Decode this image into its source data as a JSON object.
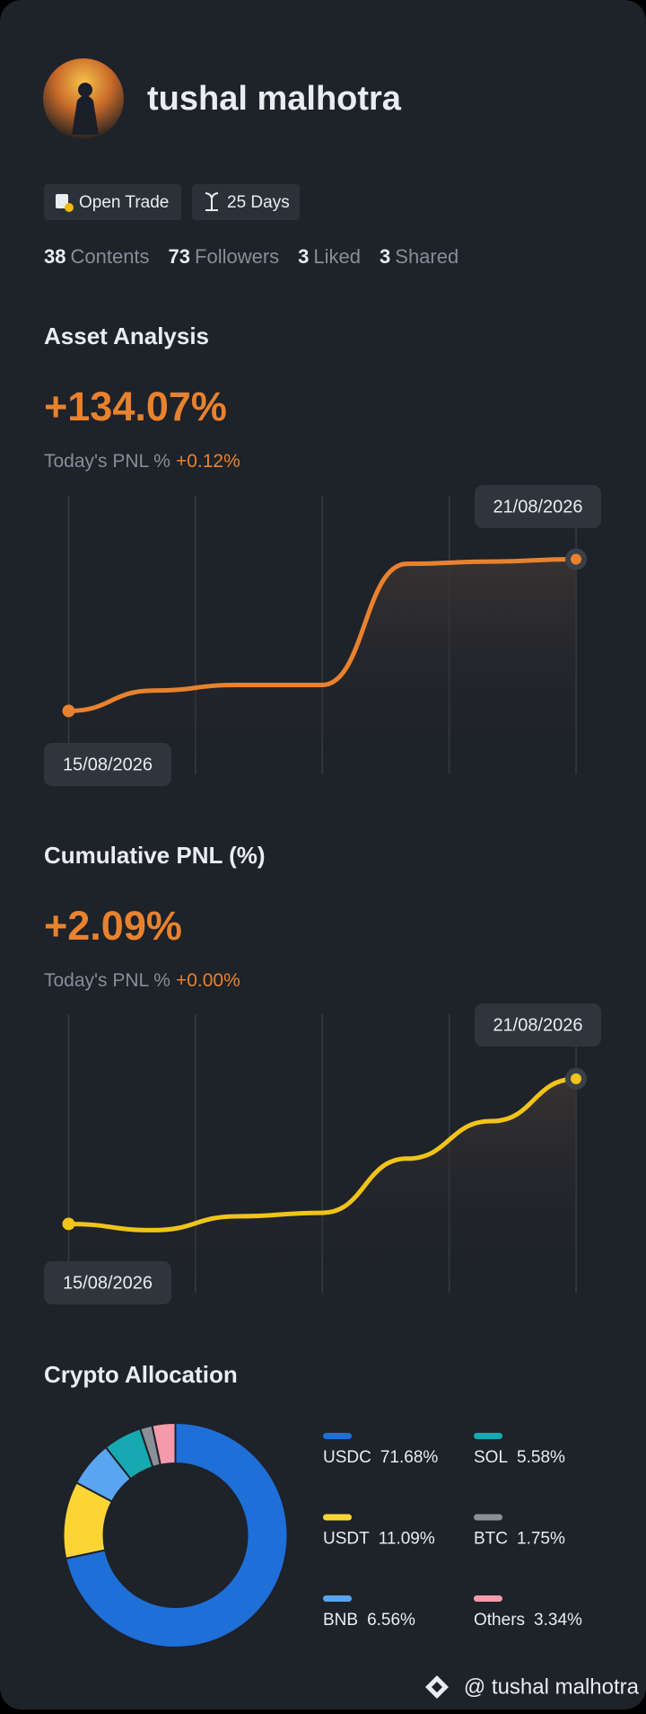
{
  "profile": {
    "name": "tushal malhotra",
    "badges": [
      "Open Trade",
      "25 Days"
    ],
    "stats": [
      {
        "value": 38,
        "label": "Contents"
      },
      {
        "value": 73,
        "label": "Followers"
      },
      {
        "value": 3,
        "label": "Liked"
      },
      {
        "value": 3,
        "label": "Shared"
      }
    ]
  },
  "chart_data": [
    {
      "type": "line",
      "title": "Asset Analysis",
      "headline": "+134.07%",
      "subtitle": "Today's PNL %",
      "subtitle_value": "+0.12%",
      "x": [
        "15/08/2026",
        null,
        null,
        null,
        null,
        null,
        "21/08/2026"
      ],
      "values": [
        0,
        18,
        23,
        23,
        130,
        132,
        134.07
      ],
      "color": "#e8822e",
      "ylim": [
        -56,
        190
      ]
    },
    {
      "type": "line",
      "title": "Cumulative PNL (%)",
      "headline": "+2.09%",
      "subtitle": "Today's PNL %",
      "subtitle_value": "+0.00%",
      "x": [
        "15/08/2026",
        null,
        null,
        null,
        null,
        null,
        "21/08/2026"
      ],
      "values": [
        0,
        -0.09,
        0.11,
        0.16,
        0.94,
        1.48,
        2.09
      ],
      "color": "#f0c419",
      "ylim": [
        -0.99,
        3.02
      ]
    },
    {
      "type": "pie",
      "title": "Crypto Allocation",
      "categories": [
        "USDC",
        "USDT",
        "BNB",
        "SOL",
        "BTC",
        "Others"
      ],
      "values": [
        71.68,
        11.09,
        6.56,
        5.58,
        1.75,
        3.34
      ],
      "value_labels": [
        "71.68%",
        "11.09%",
        "6.56%",
        "5.58%",
        "1.75%",
        "3.34%"
      ],
      "colors": [
        "#1f6fd8",
        "#fcd535",
        "#5aa5f0",
        "#17a9b1",
        "#8a8f98",
        "#f59aaa"
      ]
    }
  ],
  "footer": "@ tushal malhotra"
}
